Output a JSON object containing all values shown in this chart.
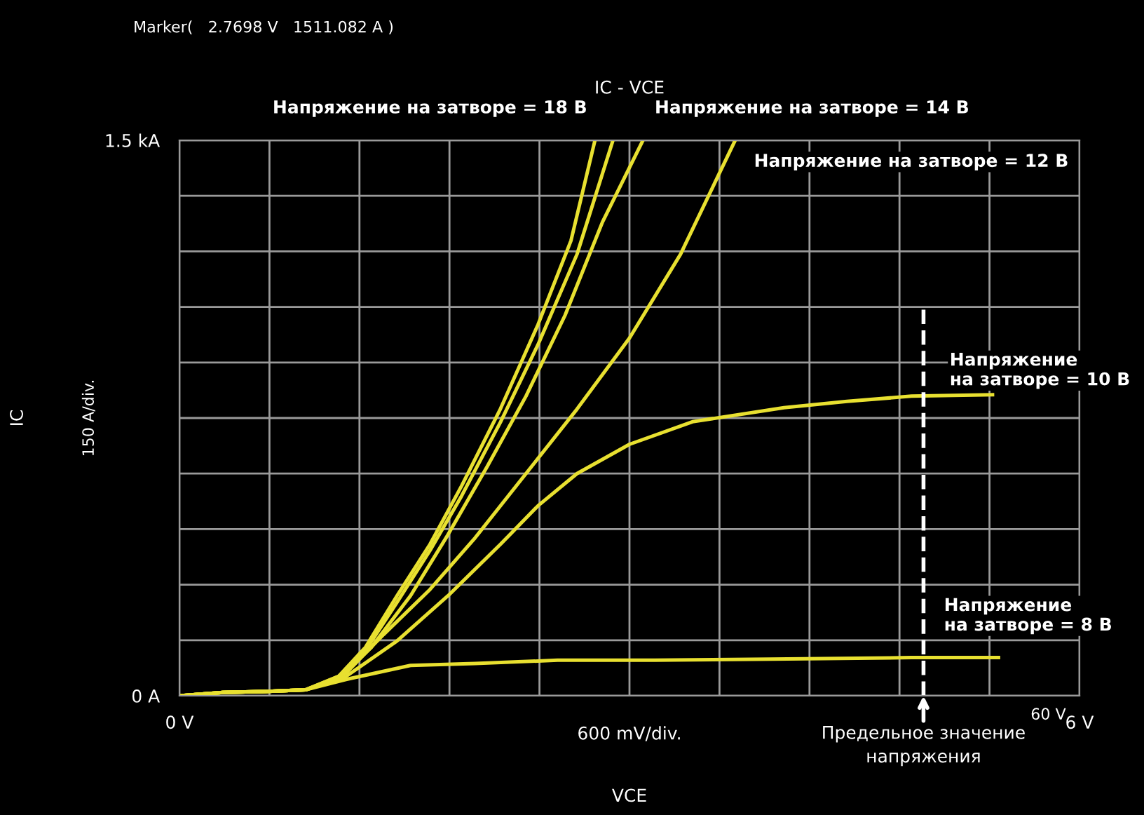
{
  "chart_data": {
    "type": "line",
    "title": "IC - VCE",
    "xlabel": "VCE",
    "ylabel": "IC",
    "xlim": [
      0,
      6
    ],
    "ylim": [
      0,
      1.5
    ],
    "xticks": [
      {
        "value": 0,
        "label": "0 V"
      },
      {
        "value": 0.6,
        "label": null
      },
      {
        "value": 1.2,
        "label": null
      },
      {
        "value": 1.8,
        "label": null
      },
      {
        "value": 2.4,
        "label": null
      },
      {
        "value": 3.0,
        "label": null
      },
      {
        "value": 3.6,
        "label": null
      },
      {
        "value": 4.2,
        "label": null
      },
      {
        "value": 4.8,
        "label": null
      },
      {
        "value": 5.4,
        "label": null
      },
      {
        "value": 6,
        "label": "6 V"
      }
    ],
    "yticks": [
      {
        "value": 0,
        "label": "0 A"
      },
      {
        "value": 0.15,
        "label": null
      },
      {
        "value": 0.3,
        "label": null
      },
      {
        "value": 0.45,
        "label": null
      },
      {
        "value": 0.6,
        "label": null
      },
      {
        "value": 0.75,
        "label": null
      },
      {
        "value": 0.9,
        "label": null
      },
      {
        "value": 1.05,
        "label": null
      },
      {
        "value": 1.2,
        "label": null
      },
      {
        "value": 1.35,
        "label": null
      },
      {
        "value": 1.5,
        "label": "1.5 kA"
      }
    ],
    "grid": true,
    "marker": "none",
    "line_style": "solid",
    "series": [
      {
        "name": "Напряжение на затворе = 18 В",
        "color": "#e8e030",
        "x": [
          0,
          0.29,
          0.59,
          0.84,
          1.06,
          1.24,
          1.45,
          1.67,
          1.88,
          2.14,
          2.39,
          2.61,
          2.77
        ],
        "values": [
          0,
          0.009,
          0.012,
          0.016,
          0.052,
          0.131,
          0.27,
          0.409,
          0.566,
          0.775,
          1.002,
          1.229,
          1.5
        ]
      },
      {
        "color": "#e8e030",
        "x": [
          0,
          0.29,
          0.59,
          0.84,
          1.06,
          1.24,
          1.45,
          1.67,
          1.88,
          2.14,
          2.39,
          2.65,
          2.89
        ],
        "values": [
          0,
          0.009,
          0.012,
          0.016,
          0.049,
          0.122,
          0.252,
          0.392,
          0.539,
          0.739,
          0.948,
          1.192,
          1.5
        ]
      },
      {
        "name": "Напряжение на затворе = 14 В",
        "color": "#e8e030",
        "x": [
          0,
          0.29,
          0.59,
          0.84,
          1.06,
          1.28,
          1.54,
          1.79,
          2.05,
          2.31,
          2.57,
          2.82,
          3.09
        ],
        "values": [
          0,
          0.009,
          0.012,
          0.016,
          0.047,
          0.131,
          0.27,
          0.435,
          0.618,
          0.809,
          1.027,
          1.279,
          1.5
        ]
      },
      {
        "name": "Напряжение на затворе = 12 В",
        "color": "#e8e030",
        "x": [
          0,
          0.29,
          0.59,
          0.84,
          1.11,
          1.36,
          1.67,
          1.97,
          2.31,
          2.65,
          3.0,
          3.34,
          3.7
        ],
        "values": [
          0,
          0.009,
          0.012,
          0.016,
          0.061,
          0.165,
          0.287,
          0.426,
          0.6,
          0.774,
          0.966,
          1.192,
          1.496
        ]
      },
      {
        "name": "Напряжение на затворе = 10 В",
        "color": "#e8e030",
        "x": [
          0,
          0.29,
          0.59,
          0.84,
          1.11,
          1.45,
          1.79,
          2.14,
          2.39,
          2.65,
          3.0,
          3.42,
          4.03,
          4.45,
          4.88,
          5.42
        ],
        "values": [
          0,
          0.009,
          0.012,
          0.016,
          0.052,
          0.148,
          0.27,
          0.409,
          0.513,
          0.6,
          0.679,
          0.74,
          0.778,
          0.795,
          0.809,
          0.813
        ]
      },
      {
        "name": "Напряжение на затворе = 8 В",
        "color": "#e8e030",
        "x": [
          0,
          0.29,
          0.59,
          0.84,
          1.11,
          1.54,
          1.97,
          2.52,
          3.17,
          3.94,
          4.88,
          5.46
        ],
        "values": [
          0,
          0.009,
          0.012,
          0.016,
          0.044,
          0.082,
          0.087,
          0.096,
          0.096,
          0.099,
          0.103,
          0.103
        ]
      }
    ],
    "ref_lines": [
      {
        "axis": "x",
        "value": 4.96,
        "label": "Предельное значение\nнапряжения",
        "color": "#ffffff",
        "line_style": "dashed"
      }
    ],
    "annotations": [
      "Marker(   2.7698 V   1511.082 A )",
      "600 mV/div.",
      "150 A/div.",
      "60 V"
    ]
  }
}
